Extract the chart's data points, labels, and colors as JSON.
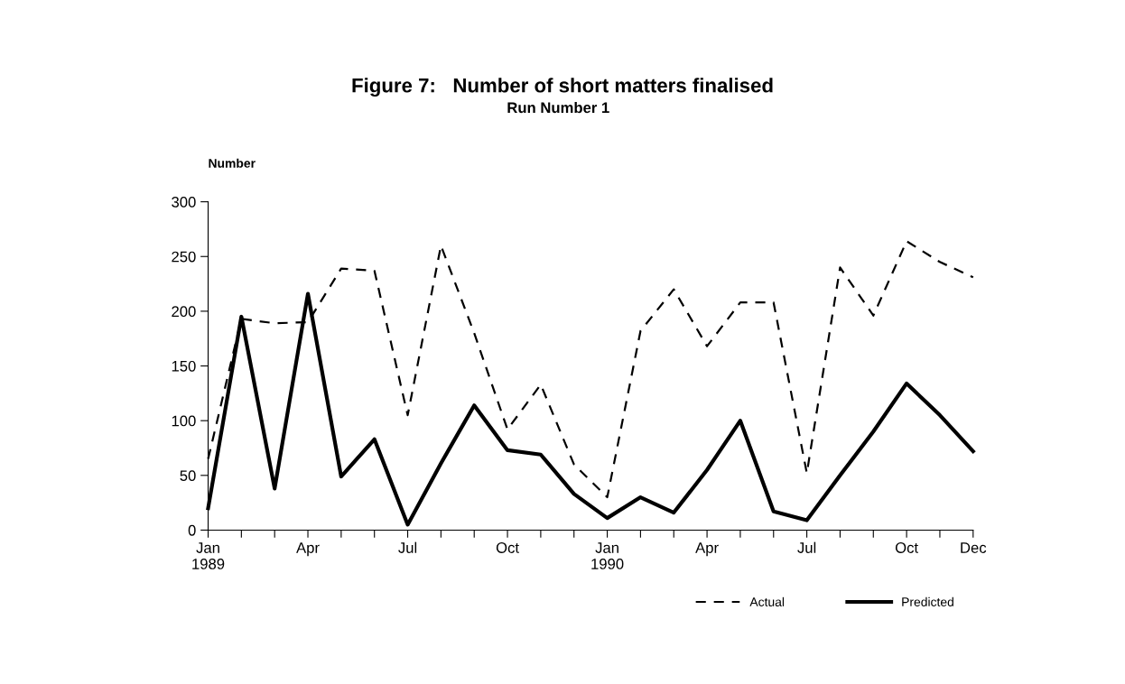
{
  "chart_data": {
    "type": "line",
    "title": "Figure 7:   Number of short matters finalised",
    "subtitle": "Run Number 1",
    "ylabel": "Number",
    "categories": [
      "Jan\n1989",
      null,
      null,
      "Apr",
      null,
      null,
      "Jul",
      null,
      null,
      "Oct",
      null,
      null,
      "Jan\n1990",
      null,
      null,
      "Apr",
      null,
      null,
      "Jul",
      null,
      null,
      "Oct",
      null,
      "Dec"
    ],
    "series": [
      {
        "name": "Actual",
        "color": "#000000",
        "line_style": "dashed",
        "values": [
          65,
          193,
          189,
          190,
          239,
          237,
          105,
          260,
          180,
          92,
          133,
          60,
          30,
          182,
          220,
          168,
          208,
          208,
          52,
          240,
          196,
          264,
          245,
          231
        ]
      },
      {
        "name": "Predicted",
        "color": "#000000",
        "line_style": "solid",
        "values": [
          20,
          195,
          38,
          216,
          49,
          83,
          5,
          61,
          114,
          73,
          69,
          33,
          11,
          30,
          16,
          55,
          100,
          17,
          9,
          50,
          90,
          134,
          105,
          72
        ]
      }
    ],
    "ylim": [
      0,
      300
    ],
    "yticks": [
      0,
      50,
      100,
      150,
      200,
      250,
      300
    ],
    "grid": false,
    "legend": "bottom right",
    "marker": "none"
  }
}
